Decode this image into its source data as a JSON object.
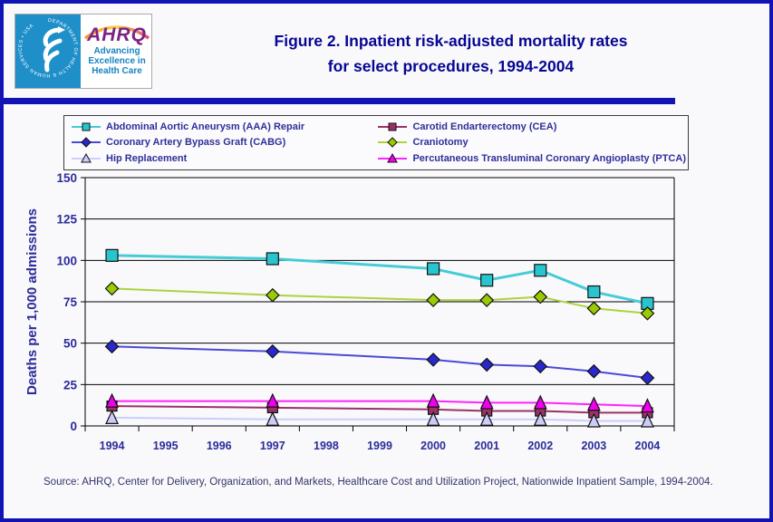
{
  "header": {
    "logo": {
      "seal_text": "DEPARTMENT OF HEALTH & HUMAN SERVICES • USA",
      "agency": "AHRQ",
      "tagline_line1": "Advancing",
      "tagline_line2": "Excellence in",
      "tagline_line3": "Health Care"
    },
    "title_line1": "Figure 2. Inpatient risk-adjusted mortality rates",
    "title_line2": "for select procedures, 1994-2004"
  },
  "chart_data": {
    "type": "line",
    "title": "",
    "xlabel": "",
    "ylabel": "Deaths per 1,000 admissions",
    "categories": [
      "1994",
      "1995",
      "1996",
      "1997",
      "1998",
      "1999",
      "2000",
      "2001",
      "2002",
      "2003",
      "2004"
    ],
    "ylim": [
      0,
      150
    ],
    "yticks": [
      0,
      25,
      50,
      75,
      100,
      125,
      150
    ],
    "grid": true,
    "legend_position": "top",
    "axis_color": "#000000",
    "text_color": "#2b2b9b",
    "data_years": [
      1994,
      1997,
      2000,
      2001,
      2002,
      2003,
      2004
    ],
    "series": [
      {
        "name": "Abdominal Aortic Aneurysm (AAA) Repair",
        "marker": "square",
        "color": "#29c5cf",
        "line_color": "#45ccd6",
        "line_width": 3,
        "marker_size": 13,
        "values": [
          103,
          101,
          95,
          88,
          94,
          81,
          74
        ]
      },
      {
        "name": "Carotid Endarterectomy (CEA)",
        "marker": "square",
        "color": "#993366",
        "line_color": "#993366",
        "line_width": 2,
        "marker_size": 11,
        "values": [
          12,
          11,
          10,
          9,
          9,
          8,
          8
        ]
      },
      {
        "name": "Coronary Artery Bypass Graft (CABG)",
        "marker": "diamond",
        "color": "#2828cc",
        "line_color": "#4a4ad6",
        "line_width": 2,
        "marker_size": 12,
        "values": [
          48,
          45,
          40,
          37,
          36,
          33,
          29
        ]
      },
      {
        "name": "Craniotomy",
        "marker": "diamond",
        "color": "#99cc00",
        "line_color": "#aed23f",
        "line_width": 2,
        "marker_size": 12,
        "values": [
          83,
          79,
          76,
          76,
          78,
          71,
          68
        ]
      },
      {
        "name": "Hip Replacement",
        "marker": "triangle",
        "color": "#ccccf8",
        "line_color": "#ccccff",
        "line_width": 2,
        "marker_size": 13,
        "values": [
          5,
          4,
          4,
          4,
          4,
          3,
          3
        ]
      },
      {
        "name": "Percutaneous Transluminal Coronary Angioplasty (PTCA)",
        "marker": "triangle",
        "color": "#ee00ee",
        "line_color": "#ff22ff",
        "line_width": 2,
        "marker_size": 13,
        "values": [
          15,
          15,
          15,
          14,
          14,
          13,
          12
        ]
      }
    ]
  },
  "footer": {
    "source": "Source: AHRQ, Center for Delivery, Organization, and Markets, Healthcare Cost and Utilization Project, Nationwide Inpatient Sample, 1994-2004."
  }
}
